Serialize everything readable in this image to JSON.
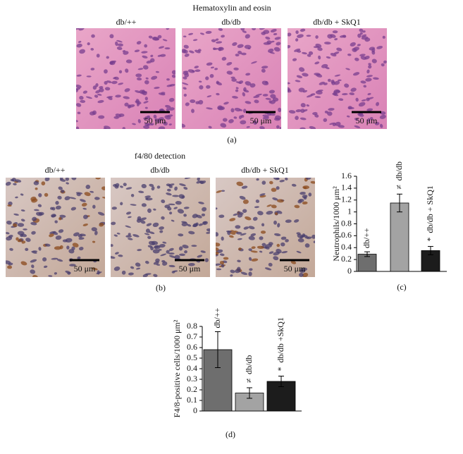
{
  "panel_a": {
    "title": "Hematoxylin and eosin",
    "labels": [
      "db/++",
      "db/db",
      "db/db + SkQ1"
    ],
    "scale_labels": [
      "50 μm",
      "50 μm",
      "50 μm"
    ],
    "caption": "(a)"
  },
  "panel_b": {
    "title": "f4/80 detection",
    "labels": [
      "db/++",
      "db/db",
      "db/db + SkQ1"
    ],
    "scale_labels": [
      "50 μm",
      "50 μm",
      "50 μm"
    ],
    "caption": "(b)"
  },
  "chart_data": [
    {
      "type": "bar",
      "y_label": "Neutrophils/1000 μm²",
      "caption": "(c)",
      "categories": [
        "db/++",
        "db/db",
        "db/db + SkQ1"
      ],
      "values": [
        0.29,
        1.15,
        0.35
      ],
      "errors": [
        0.04,
        0.15,
        0.07
      ],
      "colors": [
        "#6e6e6e",
        "#a3a3a3",
        "#1c1c1c"
      ],
      "annotations": [
        null,
        "≠",
        "*"
      ],
      "ylim": [
        0,
        1.6
      ],
      "yticks": [
        0,
        0.2,
        0.4,
        0.6,
        0.8,
        1,
        1.2,
        1.4,
        1.6
      ]
    },
    {
      "type": "bar",
      "y_label": "F4/8-positive cells/1000 μm²",
      "caption": "(d)",
      "categories": [
        "db/++",
        "db/db",
        "db/db +SkQ1"
      ],
      "values": [
        0.58,
        0.17,
        0.28
      ],
      "errors": [
        0.17,
        0.05,
        0.05
      ],
      "colors": [
        "#6e6e6e",
        "#a3a3a3",
        "#1c1c1c"
      ],
      "annotations": [
        null,
        "≠",
        "*"
      ],
      "ylim": [
        0,
        0.8
      ],
      "yticks": [
        0,
        0.1,
        0.2,
        0.3,
        0.4,
        0.5,
        0.6,
        0.7,
        0.8
      ]
    }
  ]
}
